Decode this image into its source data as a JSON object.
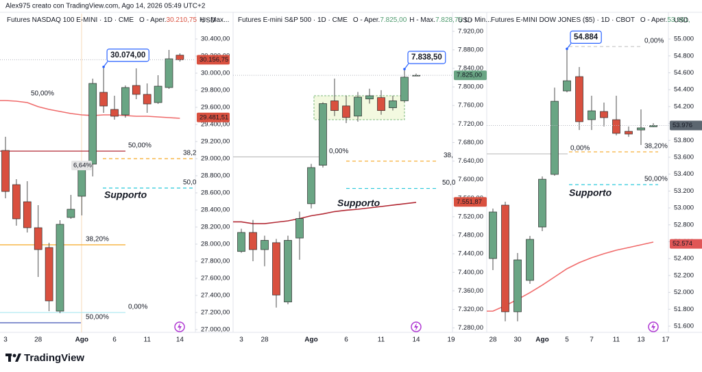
{
  "header": "Alex975 creato con TradingView.com, Ago 14, 2026 05:49 UTC+2",
  "footer": "TradingView",
  "chart_data": [
    {
      "type": "candlestick",
      "title": "Futures NASDAQ 100 E-MINI · 1D · CME",
      "legend": [
        {
          "text": "O - Aper.",
          "color": "#131722"
        },
        {
          "text": "30.210,75",
          "color": "#d9503f"
        },
        {
          "text": "H - Max...",
          "color": "#131722"
        }
      ],
      "axis_label": "USD",
      "categories": [
        "3",
        null,
        null,
        "28",
        null,
        null,
        null,
        "Ago",
        null,
        null,
        "6",
        null,
        null,
        "11",
        null,
        null,
        "14"
      ],
      "open": [
        29096,
        28696,
        28496,
        28192,
        27960,
        27216,
        28312,
        28560,
        28936,
        29776,
        29576,
        29512,
        29856,
        29752,
        29656,
        29832,
        30210.75
      ],
      "high": [
        29256,
        28760,
        28736,
        28456,
        28016,
        28280,
        28576,
        28952,
        29936,
        30074,
        29736,
        29856,
        30056,
        29880,
        29976,
        30272,
        30232
      ],
      "low": [
        28536,
        28216,
        28136,
        27616,
        27216,
        27192,
        28296,
        28336,
        28792,
        29536,
        29456,
        29480,
        29696,
        29536,
        29640,
        29816,
        30136
      ],
      "close": [
        28616,
        28296,
        28192,
        27936,
        27336,
        28232,
        28408,
        28896,
        29880,
        29616,
        29496,
        29832,
        29752,
        29640,
        29848,
        30168,
        30156.75
      ],
      "ma": [
        29680,
        29672,
        29656,
        29608,
        29576,
        29552,
        29528,
        29512,
        29504,
        29512,
        29512,
        29504,
        29496,
        29496,
        29488,
        29480,
        29472
      ],
      "ma_color": "#ef6a6a",
      "up_color": "#6aa584",
      "down_color": "#d9503f",
      "ylim": [
        26976,
        30696
      ],
      "yticks": [
        {
          "value": 27000,
          "label": "27.000,00"
        },
        {
          "value": 27200,
          "label": "27.200,00"
        },
        {
          "value": 27400,
          "label": "27.400,00"
        },
        {
          "value": 27600,
          "label": "27.600,00"
        },
        {
          "value": 27800,
          "label": "27.800,00"
        },
        {
          "value": 28000,
          "label": "28.000,00"
        },
        {
          "value": 28200,
          "label": "28.200,00"
        },
        {
          "value": 28400,
          "label": "28.400,00"
        },
        {
          "value": 28600,
          "label": "28.600,00"
        },
        {
          "value": 28800,
          "label": "28.800,00"
        },
        {
          "value": 29000,
          "label": "29.000,00"
        },
        {
          "value": 29200,
          "label": "29.200,00"
        },
        {
          "value": 29400,
          "label": "29.400,00"
        },
        {
          "value": 29600,
          "label": "29.600,00"
        },
        {
          "value": 29800,
          "label": "29.800,00"
        },
        {
          "value": 30000,
          "label": "30.000,00"
        },
        {
          "value": 30200,
          "label": "30.200,00"
        },
        {
          "value": 30400,
          "label": "30.400,00"
        }
      ],
      "price_tags": [
        {
          "value": 30156.75,
          "label": "30.156,75",
          "color": "#d9503f"
        },
        {
          "value": 29481.51,
          "label": "29.481,51",
          "color": "#d9503f"
        }
      ],
      "levels": [
        {
          "value": 29696,
          "label": "50,00%",
          "color": "#f26d6d",
          "style": "none"
        },
        {
          "value": 29088,
          "label": "50,00%",
          "color": "#b22833",
          "style": "solid"
        },
        {
          "value": 29000,
          "label": "38,2",
          "color": "#f5a623",
          "style": "dashed"
        },
        {
          "value": 28656,
          "label": "50,0",
          "color": "#26c6da",
          "style": "dashed"
        },
        {
          "value": 27992,
          "label": "38,20%",
          "color": "#f5a623",
          "style": "solid"
        },
        {
          "value": 27200,
          "label": "0,00%",
          "color": "#b2ebf2",
          "style": "solid"
        },
        {
          "value": 27080,
          "label": "50,00%",
          "color": "#3f51b5",
          "style": "solid"
        }
      ],
      "callout": {
        "value": 30074,
        "label": "30.074,00"
      },
      "badge": "6,64%",
      "note": "Supporto"
    },
    {
      "type": "candlestick",
      "title": "Futures E-mini S&P 500 · 1D · CME",
      "legend": [
        {
          "text": "O - Aper.",
          "color": "#131722"
        },
        {
          "text": "7.825,00",
          "color": "#4e9a6e"
        },
        {
          "text": "H - Max.",
          "color": "#131722"
        },
        {
          "text": "7.828,75",
          "color": "#4e9a6e"
        },
        {
          "text": "L - Min...",
          "color": "#131722"
        }
      ],
      "axis_label": "USD",
      "categories": [
        "3",
        null,
        "28",
        null,
        null,
        null,
        "Ago",
        null,
        null,
        "6",
        null,
        null,
        "11",
        null,
        null,
        "14",
        null,
        null,
        "19"
      ],
      "open": [
        7445,
        7486,
        7449,
        7464,
        7336,
        7474,
        7548,
        7631,
        7770,
        7759,
        7737,
        7774,
        7777,
        7755,
        7770,
        7825,
        null,
        null,
        null
      ],
      "high": [
        7494,
        7513,
        7479,
        7472,
        7479,
        7531,
        7634,
        7767,
        7818,
        7781,
        7789,
        7796,
        7793,
        7781,
        7838.5,
        7828.75,
        null,
        null,
        null
      ],
      "low": [
        7442,
        7424,
        7413,
        7324,
        7331,
        7427,
        7538,
        7626,
        7737,
        7722,
        7725,
        7764,
        7740,
        7749,
        7767,
        7824,
        null,
        null,
        null
      ],
      "close": [
        7486,
        7449,
        7469,
        7351,
        7469,
        7516,
        7626,
        7764,
        7749,
        7734,
        7778,
        7781,
        7749,
        7770,
        7821,
        7825,
        null,
        null,
        null
      ],
      "ma": [
        7509,
        7505,
        7505,
        7508,
        7511,
        7516,
        7522,
        7526,
        7531,
        7534,
        7536,
        7539,
        7542,
        7545,
        7548,
        7551,
        null,
        null,
        null
      ],
      "ma_color": "#b22833",
      "up_color": "#6aa584",
      "down_color": "#d9503f",
      "ylim": [
        7272,
        7958
      ],
      "yticks": [
        {
          "value": 7280,
          "label": "7.280,00"
        },
        {
          "value": 7320,
          "label": "7.320,00"
        },
        {
          "value": 7360,
          "label": "7.360,00"
        },
        {
          "value": 7400,
          "label": "7.400,00"
        },
        {
          "value": 7440,
          "label": "7.440,00"
        },
        {
          "value": 7480,
          "label": "7.480,00"
        },
        {
          "value": 7520,
          "label": "7.520,00"
        },
        {
          "value": 7560,
          "label": "7.560,00"
        },
        {
          "value": 7600,
          "label": "7.600,00"
        },
        {
          "value": 7640,
          "label": "7.640,00"
        },
        {
          "value": 7680,
          "label": "7.680,00"
        },
        {
          "value": 7720,
          "label": "7.720,00"
        },
        {
          "value": 7760,
          "label": "7.760,00"
        },
        {
          "value": 7800,
          "label": "7.800,00"
        },
        {
          "value": 7840,
          "label": "7.840,00"
        },
        {
          "value": 7880,
          "label": "7.880,00"
        },
        {
          "value": 7920,
          "label": "7.920,00"
        }
      ],
      "price_tags": [
        {
          "value": 7825,
          "label": "7.825,00",
          "color": "#6aa584"
        },
        {
          "value": 7551.87,
          "label": "7.551,87",
          "color": "#d9503f"
        }
      ],
      "levels": [
        {
          "value": 7649,
          "label": "0,00%",
          "color": "#b8b8b8",
          "style": "solid"
        },
        {
          "value": 7640,
          "label": "38,",
          "color": "#f5a623",
          "style": "dashed"
        },
        {
          "value": 7581,
          "label": "50,0",
          "color": "#26c6da",
          "style": "dashed"
        }
      ],
      "callout": {
        "value": 7838.5,
        "label": "7.838,50"
      },
      "note": "Supporto"
    },
    {
      "type": "candlestick",
      "title": "Futures E-MINI DOW JONES ($5) · 1D · CBOT",
      "legend": [
        {
          "text": "O - Aper.",
          "color": "#131722"
        },
        {
          "text": "53.961,",
          "color": "#4e9a6e"
        }
      ],
      "axis_label": "USD",
      "categories": [
        "28",
        null,
        "30",
        null,
        "Ago",
        null,
        "5",
        null,
        "7",
        null,
        "11",
        null,
        "13",
        null,
        "17"
      ],
      "open": [
        52401,
        53033,
        51770,
        52142,
        52774,
        53397,
        54385,
        54555,
        54045,
        54142,
        54045,
        53907,
        53923,
        53961,
        null
      ],
      "high": [
        52992,
        53073,
        52466,
        52669,
        53373,
        54425,
        54884,
        54668,
        54328,
        54247,
        54328,
        53964,
        54166,
        54004,
        null
      ],
      "low": [
        52264,
        51657,
        51657,
        52102,
        52725,
        53381,
        54369,
        53923,
        53923,
        53964,
        53859,
        53842,
        53745,
        53956,
        null
      ],
      "close": [
        52952,
        51770,
        52385,
        52628,
        53340,
        54263,
        54506,
        54021,
        54150,
        54069,
        53883,
        53875,
        53948,
        53976,
        null
      ],
      "ma": [
        51778,
        51843,
        51916,
        51997,
        52086,
        52183,
        52280,
        52353,
        52410,
        52458,
        52499,
        52531,
        52563,
        52596,
        null
      ],
      "ma_color": "#f06a6a",
      "up_color": "#6aa584",
      "down_color": "#d9503f",
      "ylim": [
        51535,
        55300
      ],
      "yticks": [
        {
          "value": 51600,
          "label": "51.600"
        },
        {
          "value": 51800,
          "label": "51.800"
        },
        {
          "value": 52000,
          "label": "52.000"
        },
        {
          "value": 52200,
          "label": "52.200"
        },
        {
          "value": 52400,
          "label": "52.400"
        },
        {
          "value": 52600,
          "label": "52.600"
        },
        {
          "value": 52800,
          "label": "52.800"
        },
        {
          "value": 53000,
          "label": "53.000"
        },
        {
          "value": 53200,
          "label": "53.200"
        },
        {
          "value": 53400,
          "label": "53.400"
        },
        {
          "value": 53600,
          "label": "53.600"
        },
        {
          "value": 53800,
          "label": "53.800"
        },
        {
          "value": 54000,
          "label": "54.000"
        },
        {
          "value": 54200,
          "label": "54.200"
        },
        {
          "value": 54400,
          "label": "54.400"
        },
        {
          "value": 54600,
          "label": "54.600"
        },
        {
          "value": 54800,
          "label": "54.800"
        },
        {
          "value": 55000,
          "label": "55.000"
        }
      ],
      "price_tags": [
        {
          "value": 53976,
          "label": "53.976",
          "color": "#5c6670"
        },
        {
          "value": 52574,
          "label": "52.574",
          "color": "#e05656"
        }
      ],
      "levels": [
        {
          "value": 54911,
          "label": "0,00%",
          "color": "#c4c4c4",
          "style": "dashed"
        },
        {
          "value": 53640,
          "label": "0,00%",
          "color": "#c4c4c4",
          "style": "solid"
        },
        {
          "value": 53664,
          "label": "38,20%",
          "color": "#f5a623",
          "style": "dashed"
        },
        {
          "value": 53276,
          "label": "50,00%",
          "color": "#26c6da",
          "style": "dashed"
        }
      ],
      "callout": {
        "value": 54884,
        "label": "54.884"
      },
      "note": "Supporto"
    }
  ]
}
